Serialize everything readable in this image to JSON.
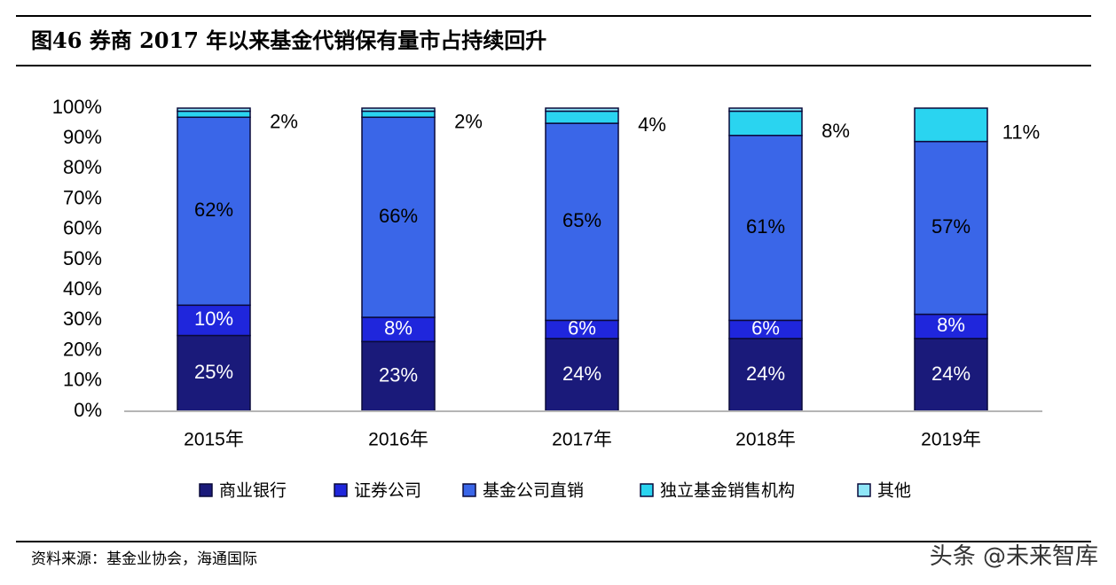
{
  "title": "图46 券商 2017 年以来基金代销保有量市占持续回升",
  "source": "资料来源：基金业协会，海通国际",
  "watermark": "头条 @未来智库",
  "colors": {
    "bank": "#1a1a7a",
    "securities": "#1f26dc",
    "fund_direct": "#3a66e8",
    "independent": "#2ad4f0",
    "other": "#8fe6f8"
  },
  "chart_data": {
    "type": "bar",
    "stacked": true,
    "title": "",
    "xlabel": "",
    "ylabel": "",
    "ylim": [
      0,
      100
    ],
    "y_ticks": [
      "0%",
      "10%",
      "20%",
      "30%",
      "40%",
      "50%",
      "60%",
      "70%",
      "80%",
      "90%",
      "100%"
    ],
    "categories": [
      "2015年",
      "2016年",
      "2017年",
      "2018年",
      "2019年"
    ],
    "legend_position": "bottom",
    "grid": false,
    "series": [
      {
        "name": "商业银行",
        "color_key": "bank",
        "values": [
          25,
          23,
          24,
          24,
          24
        ],
        "labels": [
          "25%",
          "23%",
          "24%",
          "24%",
          "24%"
        ],
        "label_color": "#ffffff"
      },
      {
        "name": "证券公司",
        "color_key": "securities",
        "values": [
          10,
          8,
          6,
          6,
          8
        ],
        "labels": [
          "10%",
          "8%",
          "6%",
          "6%",
          "8%"
        ],
        "label_color": "#ffffff"
      },
      {
        "name": "基金公司直销",
        "color_key": "fund_direct",
        "values": [
          62,
          66,
          65,
          61,
          57
        ],
        "labels": [
          "62%",
          "66%",
          "65%",
          "61%",
          "57%"
        ],
        "label_color": "#000000"
      },
      {
        "name": "独立基金销售机构",
        "color_key": "independent",
        "values": [
          2,
          2,
          4,
          8,
          11
        ],
        "labels": [
          "2%",
          "2%",
          "4%",
          "8%",
          "11%"
        ],
        "label_color": "#000000",
        "label_outside": true
      },
      {
        "name": "其他",
        "color_key": "other",
        "values": [
          1,
          1,
          1,
          1,
          0
        ],
        "labels": [],
        "label_color": "#000000"
      }
    ]
  }
}
